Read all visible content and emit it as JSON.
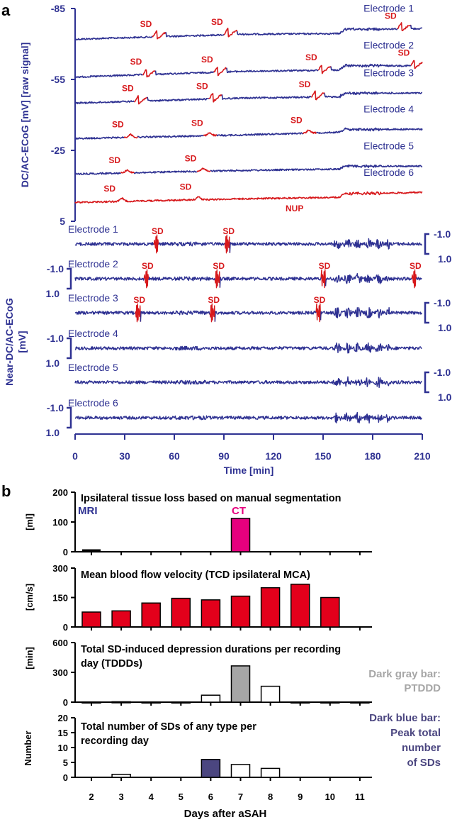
{
  "panel_a": {
    "letter": "a",
    "top": {
      "ylabel": "DC/AC-ECoG [mV] [raw signal]",
      "ticks": [
        "-85",
        "-55",
        "-25",
        "5"
      ],
      "tick_values": [
        -85,
        -55,
        -25,
        5
      ],
      "electrodes": [
        {
          "label": "Electrode 1",
          "red": false,
          "sd_times": [
            49,
            92,
            197
          ],
          "trend": [
            [
              0,
              0
            ],
            [
              100,
              7
            ],
            [
              160,
              8
            ],
            [
              163,
              14
            ],
            [
              210,
              15
            ]
          ],
          "base": -72
        },
        {
          "label": "Electrode 2",
          "red": false,
          "sd_times": [
            43,
            86,
            149,
            205
          ],
          "trend": [
            [
              0,
              0
            ],
            [
              100,
              8
            ],
            [
              160,
              10
            ],
            [
              163,
              16
            ],
            [
              210,
              16
            ]
          ],
          "base": -56
        },
        {
          "label": "Electrode 3",
          "red": false,
          "sd_times": [
            38,
            83,
            145
          ],
          "trend": [
            [
              0,
              0
            ],
            [
              100,
              7
            ],
            [
              160,
              9
            ],
            [
              163,
              14
            ],
            [
              210,
              14
            ]
          ],
          "base": -45
        },
        {
          "label": "Electrode 4",
          "red": false,
          "sd_times": [
            32,
            80,
            140
          ],
          "trend": [
            [
              0,
              0
            ],
            [
              100,
              5
            ],
            [
              160,
              9
            ],
            [
              163,
              13
            ],
            [
              210,
              13
            ]
          ],
          "base": -30
        },
        {
          "label": "Electrode 5",
          "red": false,
          "sd_times": [
            30,
            76
          ],
          "trend": [
            [
              0,
              0
            ],
            [
              100,
              5
            ],
            [
              160,
              7
            ],
            [
              163,
              11
            ],
            [
              210,
              11
            ]
          ],
          "base": -15
        },
        {
          "label": "Electrode 6",
          "red": true,
          "sd_times": [
            27,
            73
          ],
          "trend": [
            [
              0,
              0
            ],
            [
              100,
              5
            ],
            [
              160,
              7
            ],
            [
              163,
              12
            ],
            [
              210,
              14
            ]
          ],
          "base": -3
        }
      ],
      "sd_label": "SD",
      "nup_label": "NUP",
      "nup_time": 135
    },
    "bottom": {
      "ylabel_line1": "Near-DC/AC-ECoG",
      "ylabel_line2": "[mV]",
      "scale_top": "-1.0",
      "scale_bottom": "1.0",
      "electrodes": [
        {
          "label": "Electrode 1",
          "scale_side": "right",
          "sd_times": [
            49,
            92
          ]
        },
        {
          "label": "Electrode 2",
          "scale_side": "left",
          "sd_times": [
            43,
            86,
            150,
            205
          ]
        },
        {
          "label": "Electrode 3",
          "scale_side": "right",
          "sd_times": [
            38,
            83,
            147
          ]
        },
        {
          "label": "Electrode 4",
          "scale_side": "left",
          "sd_times": []
        },
        {
          "label": "Electrode 5",
          "scale_side": "right",
          "sd_times": []
        },
        {
          "label": "Electrode 6",
          "scale_side": "left",
          "sd_times": []
        }
      ]
    },
    "xaxis": {
      "label": "Time [min]",
      "ticks": [
        "0",
        "30",
        "60",
        "90",
        "120",
        "150",
        "180",
        "210"
      ],
      "tick_values": [
        0,
        30,
        60,
        90,
        120,
        150,
        180,
        210
      ],
      "xlim": [
        0,
        210
      ]
    }
  },
  "panel_b": {
    "letter": "b",
    "xlabel": "Days after aSAH",
    "days": [
      "2",
      "3",
      "4",
      "5",
      "6",
      "7",
      "8",
      "9",
      "10",
      "11"
    ],
    "day_values": [
      2,
      3,
      4,
      5,
      6,
      7,
      8,
      9,
      10,
      11
    ],
    "colors": {
      "blue_text": "#2e3192",
      "bar_red": "#e3001b",
      "ct_pink": "#e6007e",
      "dark_gray": "#a6a6a6",
      "dark_blue": "#4b4680"
    },
    "tissue": {
      "title": "Ipsilateral tissue loss based on manual segmentation",
      "ylabel": "[ml]",
      "ticks": [
        "200",
        "100",
        "0"
      ],
      "tick_values": [
        200,
        100,
        0
      ],
      "ylim": [
        0,
        200
      ],
      "mri_label": "MRI",
      "ct_label": "CT",
      "mri": {
        "day": 2,
        "value": 2
      },
      "ct": {
        "day": 7,
        "value": 112
      }
    },
    "velocity": {
      "title": "Mean blood flow velocity (TCD ipsilateral MCA)",
      "ylabel": "[cm/s]",
      "ticks": [
        "300",
        "150",
        "0"
      ],
      "tick_values": [
        300,
        150,
        0
      ],
      "ylim": [
        0,
        300
      ],
      "values": [
        {
          "day": 2,
          "v": 76
        },
        {
          "day": 3,
          "v": 82
        },
        {
          "day": 4,
          "v": 122
        },
        {
          "day": 5,
          "v": 146
        },
        {
          "day": 6,
          "v": 138
        },
        {
          "day": 7,
          "v": 157
        },
        {
          "day": 8,
          "v": 200
        },
        {
          "day": 9,
          "v": 218
        },
        {
          "day": 10,
          "v": 150
        }
      ]
    },
    "tdddd": {
      "title_line1": "Total SD-induced depression durations per recording",
      "title_line2": "day (TDDDs)",
      "ylabel": "[min]",
      "ticks": [
        "600",
        "300",
        "0"
      ],
      "tick_values": [
        600,
        300,
        0
      ],
      "ylim": [
        0,
        600
      ],
      "values": [
        {
          "day": 2,
          "v": 2
        },
        {
          "day": 3,
          "v": 4
        },
        {
          "day": 4,
          "v": 2
        },
        {
          "day": 5,
          "v": 2
        },
        {
          "day": 6,
          "v": 70
        },
        {
          "day": 7,
          "v": 365
        },
        {
          "day": 8,
          "v": 160
        },
        {
          "day": 9,
          "v": 2
        },
        {
          "day": 10,
          "v": 2
        },
        {
          "day": 11,
          "v": 2
        }
      ],
      "highlight_day": 7,
      "legend_line1": "Dark gray bar:",
      "legend_line2": "PTDDD"
    },
    "sds": {
      "title_line1": "Total number of SDs of any type per",
      "title_line2": "recording day",
      "ylabel": "Number",
      "ticks": [
        "20",
        "15",
        "10",
        "5",
        "0"
      ],
      "tick_values": [
        20,
        15,
        10,
        5,
        0
      ],
      "ylim": [
        0,
        20
      ],
      "values": [
        {
          "day": 3,
          "v": 1
        },
        {
          "day": 6,
          "v": 6
        },
        {
          "day": 7,
          "v": 4.3
        },
        {
          "day": 8,
          "v": 3
        }
      ],
      "highlight_day": 6,
      "legend_lines": [
        "Dark blue bar:",
        "Peak total",
        "number",
        "of SDs"
      ]
    }
  },
  "chart_data": [
    {
      "type": "line",
      "title": "DC/AC-ECoG raw signal, electrodes 1-6",
      "xlabel": "Time [min]",
      "ylabel": "DC/AC-ECoG [mV] [raw signal]",
      "xlim": [
        0,
        210
      ],
      "ylim": [
        5,
        -85
      ],
      "series": [
        {
          "name": "Electrode 1",
          "sd_times": [
            49,
            92,
            197
          ]
        },
        {
          "name": "Electrode 2",
          "sd_times": [
            43,
            86,
            149,
            205
          ]
        },
        {
          "name": "Electrode 3",
          "sd_times": [
            38,
            83,
            145
          ]
        },
        {
          "name": "Electrode 4",
          "sd_times": [
            32,
            80,
            140
          ]
        },
        {
          "name": "Electrode 5",
          "sd_times": [
            30,
            76
          ]
        },
        {
          "name": "Electrode 6",
          "sd_times": [
            27,
            73
          ]
        }
      ]
    },
    {
      "type": "line",
      "title": "Near-DC/AC-ECoG, electrodes 1-6",
      "xlabel": "Time [min]",
      "ylabel": "Near-DC/AC-ECoG [mV]",
      "xlim": [
        0,
        210
      ],
      "series": [
        {
          "name": "Electrode 1",
          "sd_times": [
            49,
            92
          ]
        },
        {
          "name": "Electrode 2",
          "sd_times": [
            43,
            86,
            150,
            205
          ]
        },
        {
          "name": "Electrode 3",
          "sd_times": [
            38,
            83,
            147
          ]
        },
        {
          "name": "Electrode 4",
          "sd_times": []
        },
        {
          "name": "Electrode 5",
          "sd_times": []
        },
        {
          "name": "Electrode 6",
          "sd_times": []
        }
      ]
    },
    {
      "type": "bar",
      "title": "Ipsilateral tissue loss based on manual segmentation",
      "xlabel": "Days after aSAH",
      "ylabel": "[ml]",
      "categories": [
        "2",
        "7"
      ],
      "series": [
        {
          "name": "MRI",
          "values": [
            2,
            null
          ]
        },
        {
          "name": "CT",
          "values": [
            null,
            112
          ]
        }
      ],
      "ylim": [
        0,
        200
      ]
    },
    {
      "type": "bar",
      "title": "Mean blood flow velocity (TCD ipsilateral MCA)",
      "xlabel": "Days after aSAH",
      "ylabel": "[cm/s]",
      "categories": [
        "2",
        "3",
        "4",
        "5",
        "6",
        "7",
        "8",
        "9",
        "10"
      ],
      "values": [
        76,
        82,
        122,
        146,
        138,
        157,
        200,
        218,
        150
      ],
      "ylim": [
        0,
        300
      ]
    },
    {
      "type": "bar",
      "title": "Total SD-induced depression durations per recording day (TDDDs)",
      "xlabel": "Days after aSAH",
      "ylabel": "[min]",
      "categories": [
        "2",
        "3",
        "4",
        "5",
        "6",
        "7",
        "8",
        "9",
        "10",
        "11"
      ],
      "values": [
        2,
        4,
        2,
        2,
        70,
        365,
        160,
        2,
        2,
        2
      ],
      "ylim": [
        0,
        600
      ]
    },
    {
      "type": "bar",
      "title": "Total number of SDs of any type per recording day",
      "xlabel": "Days after aSAH",
      "ylabel": "Number",
      "categories": [
        "2",
        "3",
        "4",
        "5",
        "6",
        "7",
        "8",
        "9",
        "10",
        "11"
      ],
      "values": [
        0,
        1,
        0,
        0,
        6,
        4.3,
        3,
        0,
        0,
        0
      ],
      "ylim": [
        0,
        20
      ]
    }
  ]
}
